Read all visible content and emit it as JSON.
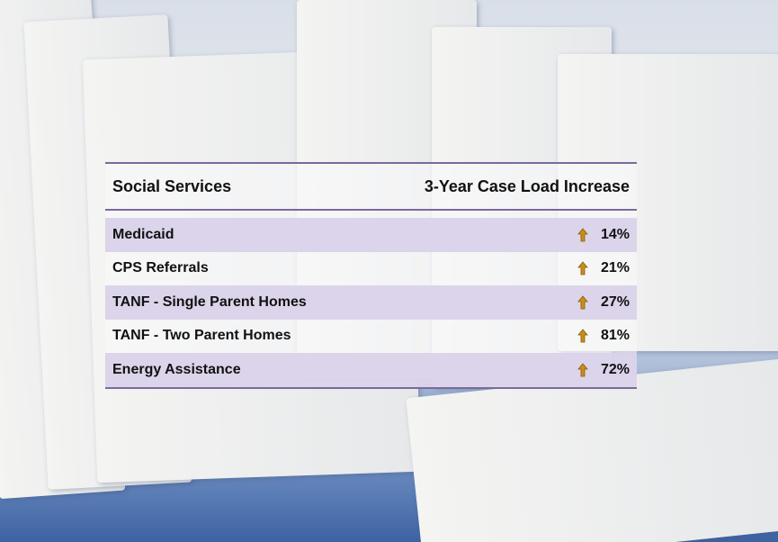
{
  "table": {
    "header": [
      "Social Services",
      "3-Year Case Load Increase"
    ],
    "rows": [
      [
        "Medicaid",
        "14%"
      ],
      [
        "CPS Referrals",
        "21%"
      ],
      [
        "TANF - Single Parent Homes",
        "27%"
      ],
      [
        "TANF - Two Parent Homes",
        "81%"
      ],
      [
        "Energy Assistance",
        "72%"
      ]
    ]
  }
}
